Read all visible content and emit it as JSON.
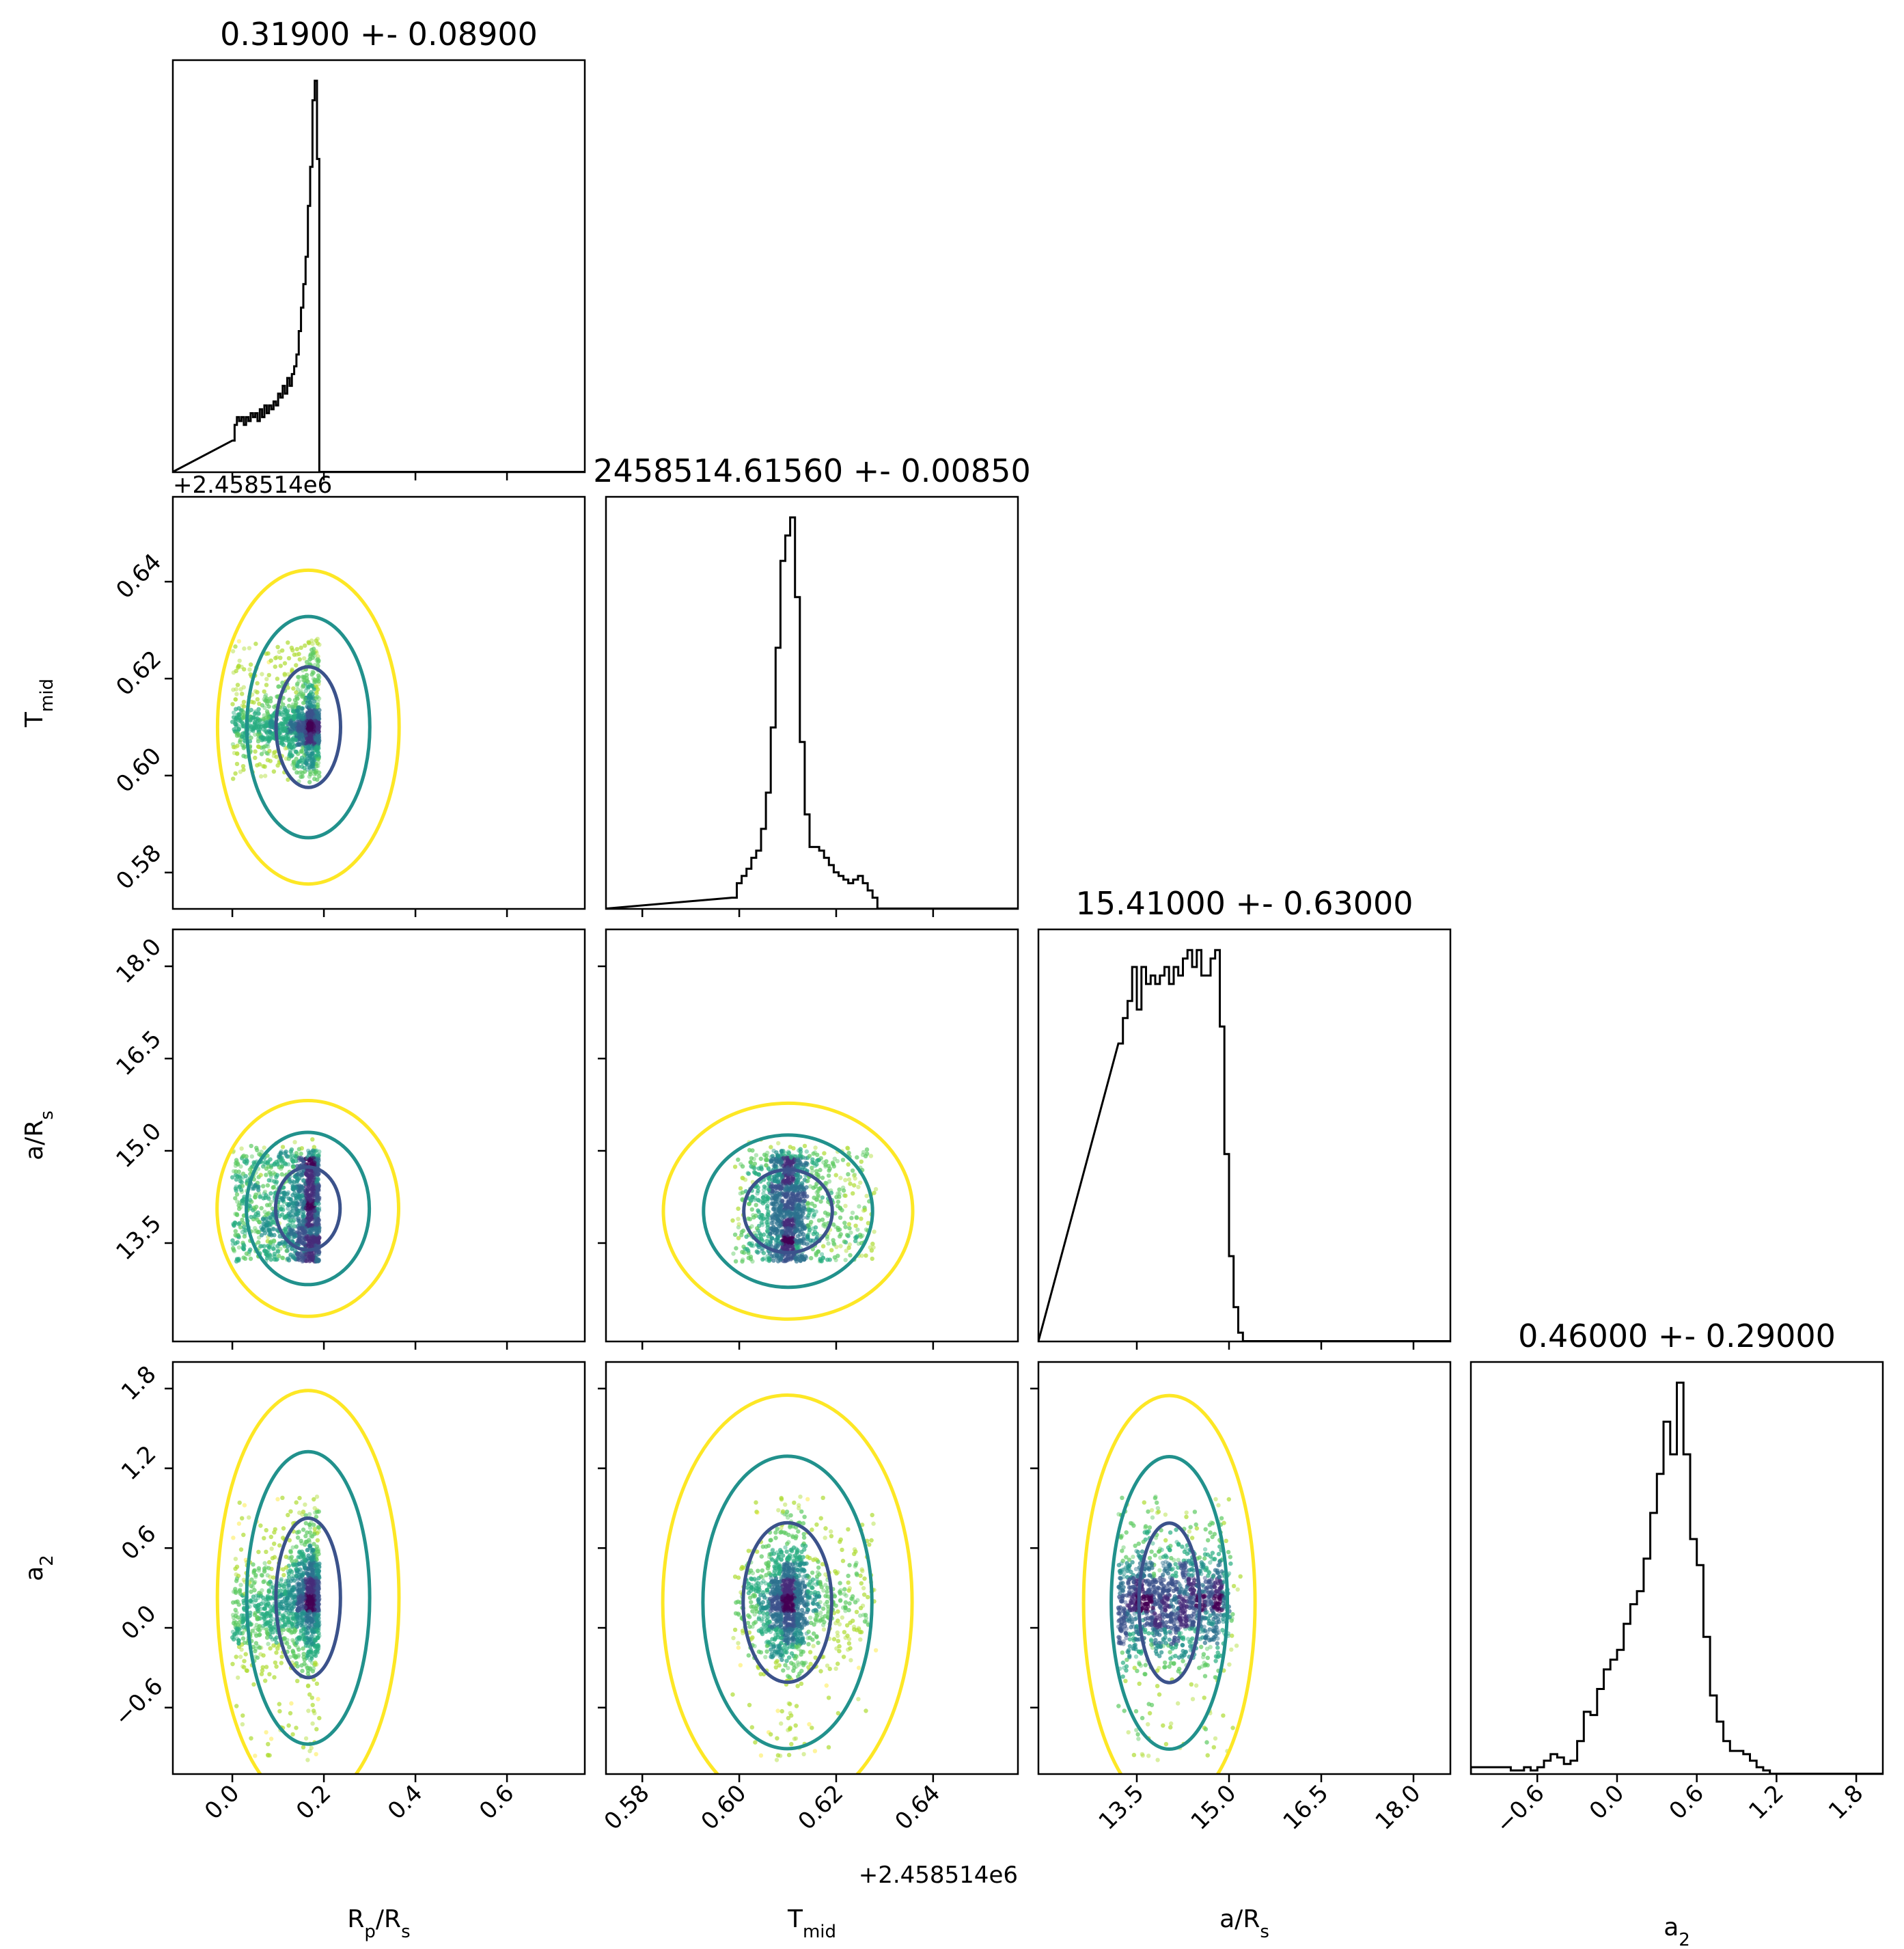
{
  "chart_data": {
    "type": "scatter",
    "subtype": "corner plot (histograms on diagonal, scatter with density contours below)",
    "parameters": [
      "R_p/R_s",
      "T_mid",
      "a/R_s",
      "a_2"
    ],
    "axis_labels": {
      "rp": {
        "base": "R",
        "sub": "p",
        "rest": "/R",
        "sub2": "s"
      },
      "tmid": {
        "base": "T",
        "sub": "mid"
      },
      "ars": {
        "base": "a/R",
        "sub": "s"
      },
      "a2": {
        "base": "a",
        "sub": "2"
      }
    },
    "titles": {
      "rp": "0.31900 +- 0.08900",
      "tmid": "2458514.61560 +- 0.00850",
      "ars": "15.41000 +- 0.63000",
      "a2": "0.46000 +- 0.29000"
    },
    "offset_labels": {
      "tmid_y": "+2.458514e6",
      "tmid_x": "+2.458514e6"
    },
    "ranges": {
      "rp": [
        -0.13,
        0.77
      ],
      "tmid": [
        0.5725,
        0.6575
      ],
      "ars": [
        11.9,
        18.6
      ],
      "a2": [
        -1.1,
        2.0
      ]
    },
    "ticks": {
      "rp": {
        "values": [
          0.0,
          0.2,
          0.4,
          0.6
        ],
        "labels": [
          "0.0",
          "0.2",
          "0.4",
          "0.6"
        ]
      },
      "tmid": {
        "values": [
          0.58,
          0.6,
          0.62,
          0.64
        ],
        "labels": [
          "0.58",
          "0.60",
          "0.62",
          "0.64"
        ]
      },
      "ars": {
        "values": [
          13.5,
          15.0,
          16.5,
          18.0
        ],
        "labels": [
          "13.5",
          "15.0",
          "16.5",
          "18.0"
        ]
      },
      "a2": {
        "values": [
          -0.6,
          0.0,
          0.6,
          1.2,
          1.8
        ],
        "labels": [
          "−0.6",
          "0.0",
          "0.6",
          "1.2",
          "1.8"
        ]
      }
    },
    "sample_bounds": {
      "rp": [
        0.0,
        0.32
      ],
      "tmid": [
        0.5985,
        0.64
      ],
      "ars": [
        13.2,
        15.45
      ],
      "a2": [
        -1.0,
        1.0
      ]
    },
    "histograms": {
      "rp": {
        "edges_start": 0.0,
        "bin_width": 0.005,
        "counts": [
          8,
          12,
          14,
          13,
          14,
          12,
          14,
          13,
          15,
          14,
          15,
          13,
          16,
          14,
          17,
          15,
          17,
          16,
          18,
          17,
          20,
          19,
          22,
          20,
          24,
          22,
          25,
          27,
          30,
          36,
          42,
          48,
          55,
          68,
          78,
          95,
          100,
          80
        ]
      },
      "tmid": {
        "edges_start": 0.5985,
        "bin_width": 0.001,
        "counts": [
          3,
          7,
          9,
          11,
          14,
          16,
          22,
          32,
          50,
          72,
          96,
          103,
          108,
          86,
          46,
          26,
          17,
          17,
          16,
          14,
          12,
          10,
          9,
          8,
          7,
          8,
          9,
          7,
          5,
          3
        ]
      },
      "ars": {
        "edges_start": 13.2,
        "bin_width": 0.075,
        "counts": [
          70,
          76,
          80,
          88,
          78,
          88,
          84,
          86,
          84,
          86,
          88,
          84,
          88,
          86,
          90,
          92,
          88,
          92,
          86,
          86,
          90,
          92,
          74,
          44,
          20,
          8,
          2,
          0,
          0,
          0
        ]
      },
      "a2": {
        "edges_start": -1.1,
        "bin_width": 0.05,
        "counts": [
          2,
          2,
          2,
          2,
          2,
          2,
          1,
          1,
          2,
          1,
          2,
          4,
          6,
          5,
          3,
          4,
          10,
          19,
          18,
          26,
          32,
          35,
          38,
          46,
          52,
          56,
          66,
          80,
          92,
          108,
          98,
          120,
          98,
          72,
          64,
          42,
          24,
          16,
          10,
          7,
          7,
          6,
          4,
          2,
          1,
          0,
          0,
          0,
          0,
          0,
          0,
          0,
          0,
          0,
          0,
          0,
          0,
          0,
          0,
          0,
          0,
          0
        ]
      }
    },
    "contour_colors": [
      "#3b528b",
      "#21918c",
      "#fde725"
    ],
    "point_colormap": "viridis",
    "grid": false,
    "legend": "none"
  }
}
